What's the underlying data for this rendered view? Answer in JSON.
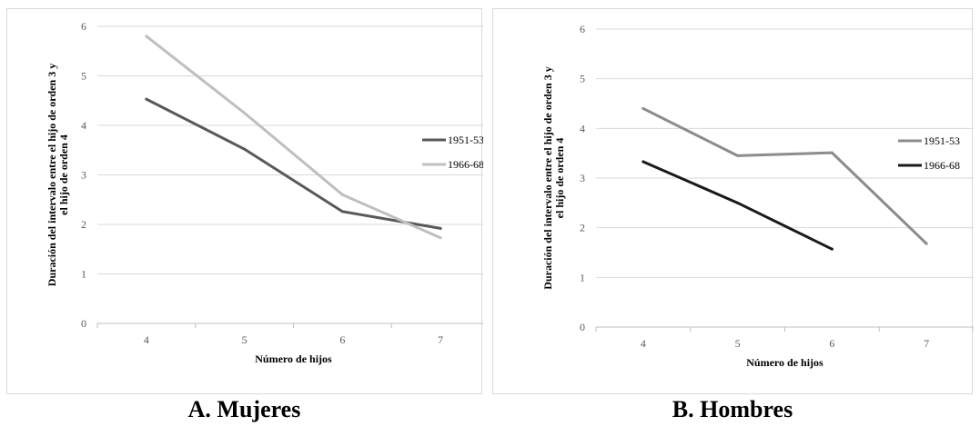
{
  "chart_data": [
    {
      "type": "line",
      "caption": "A. Mujeres",
      "xlabel": "Número de hijos",
      "ylabel_line1": "Duración del intervalo entre el hijo de orden 3 y",
      "ylabel_line2": "el hijo de orden 4",
      "categories": [
        "4",
        "5",
        "6",
        "7"
      ],
      "ylim": [
        0,
        6
      ],
      "yticks": [
        "0",
        "1",
        "2",
        "3",
        "4",
        "5",
        "6"
      ],
      "grid": true,
      "legend": "right",
      "series": [
        {
          "name": "1951-53",
          "color": "#595959",
          "values": [
            4.53,
            3.52,
            2.26,
            1.92
          ]
        },
        {
          "name": "1966-68",
          "color": "#bfbfbf",
          "values": [
            5.8,
            4.25,
            2.6,
            1.73
          ]
        }
      ]
    },
    {
      "type": "line",
      "caption": "B. Hombres",
      "xlabel": "Número de hijos",
      "ylabel_line1": "Duración del intervalo entre el hijo de orden 3 y",
      "ylabel_line2": "el hijo de orden 4",
      "categories": [
        "4",
        "5",
        "6",
        "7"
      ],
      "ylim": [
        0,
        6
      ],
      "yticks": [
        "0",
        "1",
        "2",
        "3",
        "4",
        "5",
        "6"
      ],
      "grid": true,
      "legend": "right",
      "series": [
        {
          "name": "1951-53",
          "color": "#8c8c8c",
          "values": [
            4.4,
            3.45,
            3.51,
            1.68
          ]
        },
        {
          "name": "1966-68",
          "color": "#1a1a1a",
          "values": [
            3.33,
            2.5,
            1.57,
            null
          ]
        }
      ]
    }
  ]
}
